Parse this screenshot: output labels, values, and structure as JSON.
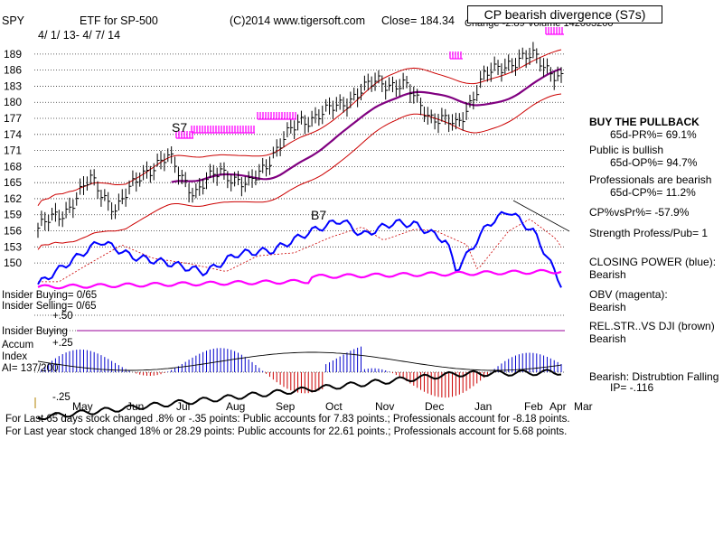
{
  "header": {
    "symbol": "SPY",
    "name": "ETF for SP-500",
    "copyright": "(C)2014 www.tigersoft.com",
    "close": "Close=  184.34",
    "change_partial": "Change  -2.89  Volume  142063200",
    "date_range": "4/ 1/ 13-  4/ 7/ 14",
    "signal_title": "CP bearish divergence (S7s)"
  },
  "side_panel": {
    "buy_pullback": "BUY THE PULLBACK",
    "pr": "65d-PR%= 69.1%",
    "public": "Public is bullish",
    "op": "65d-OP%= 94.7%",
    "professionals": "Professionals are bearish",
    "cp": "65d-CP%= 11.2%",
    "cpvspr": "CP%vsPr%= -57.9%",
    "strength": "Strength Profess/Pub= 1",
    "closing_power": "CLOSING POWER (blue):",
    "closing_power_val": "Bearish",
    "obv": "OBV (magenta):",
    "obv_val": "Bearish",
    "relstr": "REL.STR..VS DJI (brown)",
    "relstr_val": "Bearish",
    "distribution": "Bearish:  Distrubtion Falling",
    "ip": "IP= -.116"
  },
  "left_labels": {
    "insider_buying": "Insider Buying= 0/65",
    "insider_selling": "Insider Selling= 0/65",
    "plus50": "+.50",
    "insider_buying2": "Insider Buying",
    "accum": "Accum",
    "plus25": "+.25",
    "index": "Index",
    "ai": "AI= 137/200",
    "minus25": "-.25"
  },
  "footer": {
    "line1": "For Last 65 days stock changed  .8% or -.35 points:  Public accounts for  7.83 points.;  Professionals account for  -8.18 points.",
    "line2": "For Last year stock changed  18% or  28.29 points:  Public accounts for  22.61 points.;  Professionals account for  5.68 points."
  },
  "chart_data": {
    "type": "line",
    "price_axis": {
      "ticks": [
        150,
        153,
        156,
        159,
        162,
        165,
        168,
        171,
        174,
        177,
        180,
        183,
        186,
        189
      ],
      "ylim": [
        148.5,
        191
      ]
    },
    "months": [
      "May",
      "Jun",
      "Jul",
      "Aug",
      "Sep",
      "Oct",
      "Nov",
      "Dec",
      "Jan",
      "Feb",
      "Mar",
      "Apr"
    ],
    "x": [
      "2013-04-01",
      "2013-05-01",
      "2013-06-01",
      "2013-07-01",
      "2013-08-01",
      "2013-09-01",
      "2013-10-01",
      "2013-11-01",
      "2013-12-01",
      "2014-01-01",
      "2014-02-01",
      "2014-03-01",
      "2014-04-01"
    ],
    "series": [
      {
        "name": "CLOSING POWER (blue)",
        "color": "#0000ff"
      },
      {
        "name": "OBV (magenta)",
        "color": "#ff00ff"
      },
      {
        "name": "REL.STR..VS DJI (brown)",
        "color": "#000000"
      }
    ],
    "price_close": [
      156.5,
      159.5,
      165.5,
      160.0,
      167.0,
      169.5,
      163.0,
      167.5,
      164.0,
      170.5,
      176.5,
      178.0,
      181.0,
      184.0,
      183.0,
      177.5,
      175.5,
      184.5,
      187.5,
      188.5,
      184.34
    ],
    "signals": [
      {
        "label": "S7",
        "value": 174
      },
      {
        "label": "B7",
        "value": 162
      }
    ],
    "colors": {
      "price": "#000000",
      "bands": "#cc0000",
      "ma": "#800080",
      "signal_marks": "#ff00ff",
      "accum_pos": "#0000cc",
      "accum_neg": "#cc0000"
    }
  }
}
